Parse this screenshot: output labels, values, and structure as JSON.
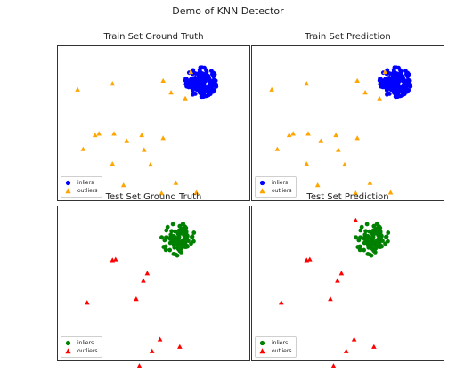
{
  "figure": {
    "title": "Demo of KNN Detector"
  },
  "chart_data": [
    {
      "type": "scatter",
      "title": "Train Set Ground Truth",
      "xlim": [
        -5,
        7.2
      ],
      "ylim": [
        -6,
        4.6
      ],
      "inlier_color": "#0000ff",
      "outlier_color": "#ffa500",
      "legend": {
        "position": "lower-left",
        "entries": [
          "inliers",
          "outliers"
        ]
      },
      "inlier_cluster": {
        "center": [
          4.1,
          2.1
        ],
        "radius": 1.0,
        "count": 200
      },
      "series": [
        {
          "name": "outliers",
          "marker": "triangle",
          "points": [
            [
              3.45,
              2.8
            ],
            [
              -3.7,
              1.6
            ],
            [
              -1.5,
              2.0
            ],
            [
              1.7,
              2.2
            ],
            [
              3.1,
              1.0
            ],
            [
              2.2,
              1.4
            ],
            [
              -2.6,
              -1.5
            ],
            [
              -2.35,
              -1.4
            ],
            [
              -1.4,
              -1.4
            ],
            [
              -0.6,
              -1.9
            ],
            [
              0.35,
              -1.5
            ],
            [
              1.7,
              -1.7
            ],
            [
              -3.35,
              -2.45
            ],
            [
              0.5,
              -2.5
            ],
            [
              -1.5,
              -3.45
            ],
            [
              0.9,
              -3.5
            ],
            [
              -2.8,
              -4.8
            ],
            [
              -0.8,
              -4.9
            ],
            [
              1.6,
              -5.45
            ],
            [
              3.8,
              -5.4
            ],
            [
              2.5,
              -4.75
            ]
          ]
        }
      ]
    },
    {
      "type": "scatter",
      "title": "Train Set Prediction",
      "xlim": [
        -5,
        7.2
      ],
      "ylim": [
        -6,
        4.6
      ],
      "inlier_color": "#0000ff",
      "outlier_color": "#ffa500",
      "legend": {
        "position": "lower-left",
        "entries": [
          "inliers",
          "outliers"
        ]
      },
      "inlier_cluster": {
        "center": [
          4.1,
          2.1
        ],
        "radius": 1.0,
        "count": 200
      },
      "series": [
        {
          "name": "outliers",
          "marker": "triangle",
          "points": [
            [
              3.45,
              2.8
            ],
            [
              -3.7,
              1.6
            ],
            [
              -1.5,
              2.0
            ],
            [
              1.7,
              2.2
            ],
            [
              3.1,
              1.0
            ],
            [
              2.2,
              1.4
            ],
            [
              -2.6,
              -1.5
            ],
            [
              -2.35,
              -1.4
            ],
            [
              -1.4,
              -1.4
            ],
            [
              -0.6,
              -1.9
            ],
            [
              0.35,
              -1.5
            ],
            [
              1.7,
              -1.7
            ],
            [
              -3.35,
              -2.45
            ],
            [
              0.5,
              -2.5
            ],
            [
              -1.5,
              -3.45
            ],
            [
              0.9,
              -3.5
            ],
            [
              -2.8,
              -4.8
            ],
            [
              -0.8,
              -4.9
            ],
            [
              1.6,
              -5.45
            ],
            [
              3.8,
              -5.4
            ],
            [
              2.5,
              -4.75
            ]
          ]
        }
      ]
    },
    {
      "type": "scatter",
      "title": "Test Set Ground Truth",
      "xlim": [
        -5,
        7.2
      ],
      "ylim": [
        -6,
        4.6
      ],
      "inlier_color": "#008000",
      "outlier_color": "#ff0000",
      "legend": {
        "position": "lower-left",
        "entries": [
          "inliers",
          "outliers"
        ]
      },
      "inlier_cluster": {
        "center": [
          2.7,
          2.3
        ],
        "radius": 1.1,
        "count": 100
      },
      "series": [
        {
          "name": "outliers",
          "marker": "triangle",
          "points": [
            [
              -1.5,
              0.9
            ],
            [
              -1.3,
              0.95
            ],
            [
              0.7,
              0.0
            ],
            [
              0.45,
              -0.5
            ],
            [
              -3.1,
              -2.0
            ],
            [
              0.0,
              -1.75
            ],
            [
              1.5,
              -4.5
            ],
            [
              2.75,
              -5.0
            ],
            [
              1.0,
              -5.3
            ],
            [
              0.2,
              -6.3
            ]
          ]
        }
      ]
    },
    {
      "type": "scatter",
      "title": "Test Set Prediction",
      "xlim": [
        -5,
        7.2
      ],
      "ylim": [
        -6,
        4.6
      ],
      "inlier_color": "#008000",
      "outlier_color": "#ff0000",
      "legend": {
        "position": "lower-left",
        "entries": [
          "inliers",
          "outliers"
        ]
      },
      "inlier_cluster": {
        "center": [
          2.7,
          2.3
        ],
        "radius": 1.1,
        "count": 100
      },
      "series": [
        {
          "name": "outliers",
          "marker": "triangle",
          "points": [
            [
              -1.5,
              0.9
            ],
            [
              -1.3,
              0.95
            ],
            [
              0.7,
              0.0
            ],
            [
              0.45,
              -0.5
            ],
            [
              -3.1,
              -2.0
            ],
            [
              0.0,
              -1.75
            ],
            [
              1.5,
              -4.5
            ],
            [
              2.75,
              -5.0
            ],
            [
              1.0,
              -5.3
            ],
            [
              0.2,
              -6.3
            ],
            [
              1.6,
              3.6
            ]
          ]
        }
      ]
    }
  ]
}
